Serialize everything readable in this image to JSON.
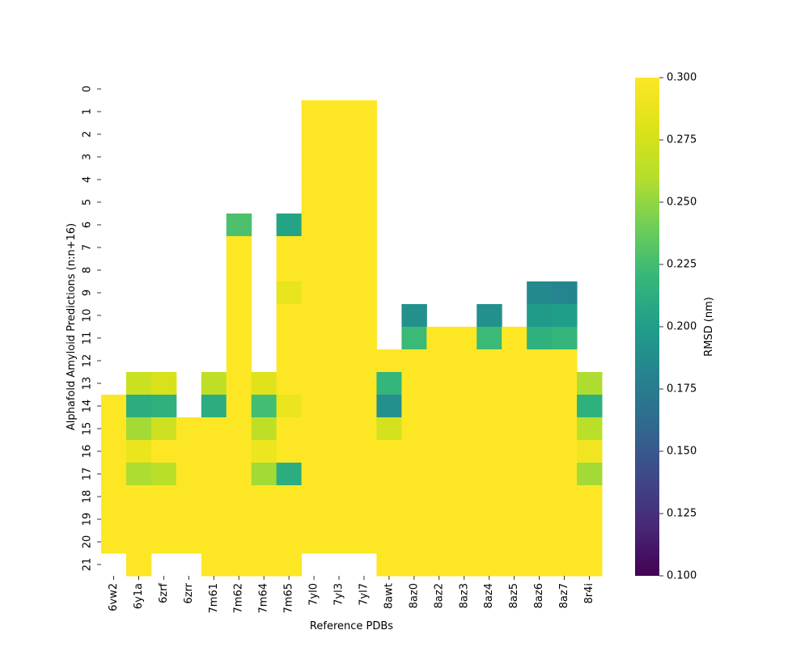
{
  "chart_data": {
    "type": "heatmap",
    "title": "",
    "xlabel": "Reference PDBs",
    "ylabel": "Alphafold Amyloid Predictions (n:n+16)",
    "colorbar_label": "RMSD (nm)",
    "colormap": "viridis",
    "vmin": 0.1,
    "vmax": 0.3,
    "colorbar_ticks": [
      "0.100",
      "0.125",
      "0.150",
      "0.175",
      "0.200",
      "0.225",
      "0.250",
      "0.275",
      "0.300"
    ],
    "x": [
      "6vw2",
      "6y1a",
      "6zrf",
      "6zrr",
      "7m61",
      "7m62",
      "7m64",
      "7m65",
      "7yl0",
      "7yl3",
      "7yl7",
      "8awt",
      "8az0",
      "8az2",
      "8az3",
      "8az4",
      "8az5",
      "8az6",
      "8az7",
      "8r4i"
    ],
    "y": [
      "0",
      "1",
      "2",
      "3",
      "4",
      "5",
      "6",
      "7",
      "8",
      "9",
      "10",
      "11",
      "12",
      "13",
      "14",
      "15",
      "16",
      "17",
      "18",
      "19",
      "20",
      "21"
    ],
    "values": [
      [
        null,
        null,
        null,
        null,
        null,
        null,
        null,
        null,
        null,
        null,
        null,
        null,
        null,
        null,
        null,
        null,
        null,
        null,
        null,
        null
      ],
      [
        null,
        null,
        null,
        null,
        null,
        null,
        null,
        null,
        0.3,
        0.3,
        0.3,
        null,
        null,
        null,
        null,
        null,
        null,
        null,
        null,
        null
      ],
      [
        null,
        null,
        null,
        null,
        null,
        null,
        null,
        null,
        0.3,
        0.3,
        0.3,
        null,
        null,
        null,
        null,
        null,
        null,
        null,
        null,
        null
      ],
      [
        null,
        null,
        null,
        null,
        null,
        null,
        null,
        null,
        0.3,
        0.3,
        0.3,
        null,
        null,
        null,
        null,
        null,
        null,
        null,
        null,
        null
      ],
      [
        null,
        null,
        null,
        null,
        null,
        null,
        null,
        null,
        0.3,
        0.3,
        0.3,
        null,
        null,
        null,
        null,
        null,
        null,
        null,
        null,
        null
      ],
      [
        null,
        null,
        null,
        null,
        null,
        null,
        null,
        null,
        0.3,
        0.3,
        0.3,
        null,
        null,
        null,
        null,
        null,
        null,
        null,
        null,
        null
      ],
      [
        null,
        null,
        null,
        null,
        null,
        0.228,
        null,
        0.205,
        0.3,
        0.3,
        0.3,
        null,
        null,
        null,
        null,
        null,
        null,
        null,
        null,
        null
      ],
      [
        null,
        null,
        null,
        null,
        null,
        0.3,
        null,
        0.3,
        0.3,
        0.3,
        0.3,
        null,
        null,
        null,
        null,
        null,
        null,
        null,
        null,
        null
      ],
      [
        null,
        null,
        null,
        null,
        null,
        0.3,
        null,
        0.3,
        0.3,
        0.3,
        0.3,
        null,
        null,
        null,
        null,
        null,
        null,
        null,
        null,
        null
      ],
      [
        null,
        null,
        null,
        null,
        null,
        0.3,
        null,
        0.287,
        0.3,
        0.3,
        0.3,
        null,
        null,
        null,
        null,
        null,
        null,
        0.185,
        0.182,
        null
      ],
      [
        null,
        null,
        null,
        null,
        null,
        0.3,
        null,
        0.3,
        0.3,
        0.3,
        0.3,
        null,
        0.19,
        null,
        null,
        0.19,
        null,
        0.198,
        0.2,
        null
      ],
      [
        null,
        null,
        null,
        null,
        null,
        0.3,
        null,
        0.3,
        0.3,
        0.3,
        0.3,
        null,
        0.222,
        0.3,
        0.3,
        0.222,
        0.3,
        0.215,
        0.218,
        null
      ],
      [
        null,
        null,
        null,
        null,
        null,
        0.3,
        null,
        0.3,
        0.3,
        0.3,
        0.3,
        0.3,
        0.3,
        0.3,
        0.3,
        0.3,
        0.3,
        0.3,
        0.3,
        null
      ],
      [
        null,
        0.27,
        0.277,
        null,
        0.265,
        0.3,
        0.282,
        0.3,
        0.3,
        0.3,
        0.3,
        0.218,
        0.3,
        0.3,
        0.3,
        0.3,
        0.3,
        0.3,
        0.3,
        0.258
      ],
      [
        0.3,
        0.212,
        0.215,
        null,
        0.212,
        0.3,
        0.225,
        0.288,
        0.3,
        0.3,
        0.3,
        0.19,
        0.3,
        0.3,
        0.3,
        0.3,
        0.3,
        0.3,
        0.3,
        0.215
      ],
      [
        0.3,
        0.255,
        0.272,
        0.3,
        0.3,
        0.3,
        0.265,
        0.3,
        0.3,
        0.3,
        0.3,
        0.275,
        0.3,
        0.3,
        0.3,
        0.3,
        0.3,
        0.3,
        0.3,
        0.262
      ],
      [
        0.3,
        0.288,
        0.3,
        0.3,
        0.3,
        0.3,
        0.29,
        0.3,
        0.3,
        0.3,
        0.3,
        0.3,
        0.3,
        0.3,
        0.3,
        0.3,
        0.3,
        0.3,
        0.3,
        0.292
      ],
      [
        0.3,
        0.258,
        0.262,
        0.3,
        0.3,
        0.3,
        0.255,
        0.212,
        0.3,
        0.3,
        0.3,
        0.3,
        0.3,
        0.3,
        0.3,
        0.3,
        0.3,
        0.3,
        0.3,
        0.255
      ],
      [
        0.3,
        0.3,
        0.3,
        0.3,
        0.3,
        0.3,
        0.3,
        0.3,
        0.3,
        0.3,
        0.3,
        0.3,
        0.3,
        0.3,
        0.3,
        0.3,
        0.3,
        0.3,
        0.3,
        0.3
      ],
      [
        0.3,
        0.3,
        0.3,
        0.3,
        0.3,
        0.3,
        0.3,
        0.3,
        0.3,
        0.3,
        0.3,
        0.3,
        0.3,
        0.3,
        0.3,
        0.3,
        0.3,
        0.3,
        0.3,
        0.3
      ],
      [
        0.3,
        0.3,
        0.3,
        0.3,
        0.3,
        0.3,
        0.3,
        0.3,
        0.3,
        0.3,
        0.3,
        0.3,
        0.3,
        0.3,
        0.3,
        0.3,
        0.3,
        0.3,
        0.3,
        0.3
      ],
      [
        null,
        0.3,
        null,
        null,
        0.3,
        0.3,
        0.3,
        0.3,
        null,
        null,
        null,
        0.3,
        0.3,
        0.3,
        0.3,
        0.3,
        0.3,
        0.3,
        0.3,
        0.3
      ]
    ]
  }
}
